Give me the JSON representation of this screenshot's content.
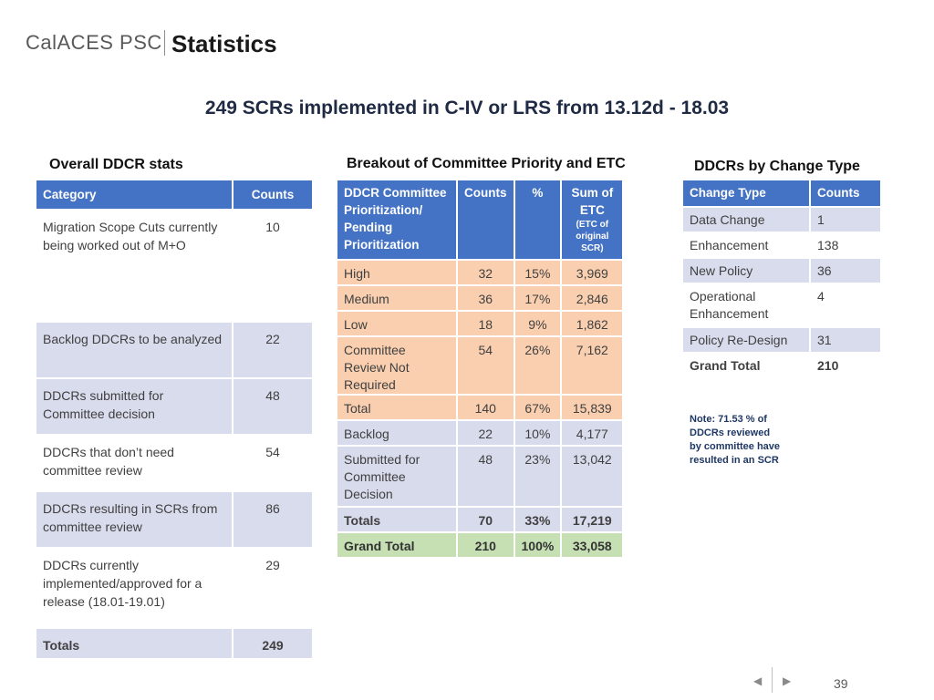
{
  "header": {
    "brand": "CalACES PSC",
    "title": "Statistics"
  },
  "headline": "249 SCRs implemented in C-IV or LRS  from 13.12d - 18.03",
  "overall": {
    "heading": "Overall DDCR stats",
    "columns": [
      "Category",
      "Counts"
    ],
    "rows": [
      {
        "category": "Migration Scope Cuts currently being worked out of M+O",
        "count": "10"
      },
      {
        "category": "Backlog DDCRs to be analyzed",
        "count": "22"
      },
      {
        "category": "DDCRs submitted for Committee decision",
        "count": "48"
      },
      {
        "category": "DDCRs that don’t need committee review",
        "count": "54"
      },
      {
        "category": "DDCRs resulting in SCRs from committee review",
        "count": "86"
      },
      {
        "category": "DDCRs currently implemented/approved for a release (18.01-19.01)",
        "count": "29"
      }
    ],
    "totals": {
      "label": "Totals",
      "count": "249"
    }
  },
  "breakout": {
    "heading": "Breakout of Committee Priority and ETC",
    "columns": {
      "priority": "DDCR Committee Prioritization/ Pending Prioritization",
      "counts": "Counts",
      "pct": "%",
      "etc": "Sum of ETC",
      "etc_note": "(ETC of original SCR)"
    },
    "rows": [
      {
        "label": "High",
        "counts": "32",
        "pct": "15%",
        "etc": "3,969"
      },
      {
        "label": "Medium",
        "counts": "36",
        "pct": "17%",
        "etc": "2,846"
      },
      {
        "label": "Low",
        "counts": "18",
        "pct": "9%",
        "etc": "1,862"
      },
      {
        "label": "Committee Review Not Required",
        "counts": "54",
        "pct": "26%",
        "etc": "7,162"
      },
      {
        "label": "Total",
        "counts": "140",
        "pct": "67%",
        "etc": "15,839"
      },
      {
        "label": "Backlog",
        "counts": "22",
        "pct": "10%",
        "etc": "4,177"
      },
      {
        "label": "Submitted for Committee Decision",
        "counts": "48",
        "pct": "23%",
        "etc": "13,042"
      },
      {
        "label": "Totals",
        "counts": "70",
        "pct": "33%",
        "etc": "17,219"
      },
      {
        "label": "Grand Total",
        "counts": "210",
        "pct": "100%",
        "etc": "33,058"
      }
    ]
  },
  "change_type": {
    "heading": "DDCRs by Change Type",
    "columns": [
      "Change Type",
      "Counts"
    ],
    "rows": [
      {
        "type": "Data Change",
        "count": "1"
      },
      {
        "type": "Enhancement",
        "count": "138"
      },
      {
        "type": "New Policy",
        "count": "36"
      },
      {
        "type": "Operational Enhancement",
        "count": "4"
      },
      {
        "type": "Policy Re-Design",
        "count": "31"
      },
      {
        "type": "Grand Total",
        "count": "210"
      }
    ]
  },
  "note": "Note: 71.53 % of DDCRs reviewed by committee have resulted in an SCR",
  "footer": {
    "prev_icon": "previous-slide-icon",
    "next_icon": "next-slide-icon",
    "page": "39"
  }
}
